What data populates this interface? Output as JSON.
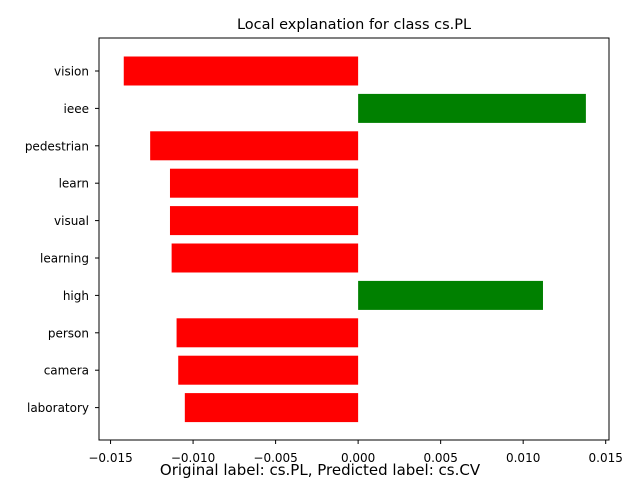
{
  "chart_data": {
    "type": "bar",
    "orientation": "horizontal",
    "title": "Local explanation for class cs.PL",
    "xlabel": "",
    "ylabel": "",
    "footer": "Original label: cs.PL, Predicted label: cs.CV",
    "categories": [
      "vision",
      "ieee",
      "pedestrian",
      "learn",
      "visual",
      "learning",
      "high",
      "person",
      "camera",
      "laboratory"
    ],
    "values": [
      -0.0142,
      0.0138,
      -0.0126,
      -0.0114,
      -0.0114,
      -0.0113,
      0.0112,
      -0.011,
      -0.0109,
      -0.0105
    ],
    "xlim": [
      -0.0157,
      0.0152
    ],
    "xticks": [
      -0.015,
      -0.01,
      -0.005,
      0.0,
      0.005,
      0.01,
      0.015
    ],
    "xtick_labels": [
      "−0.015",
      "−0.010",
      "−0.005",
      "0.000",
      "0.005",
      "0.010",
      "0.015"
    ],
    "colors": {
      "positive": "#008000",
      "negative": "#ff0000"
    },
    "grid": false,
    "legend": "none"
  }
}
